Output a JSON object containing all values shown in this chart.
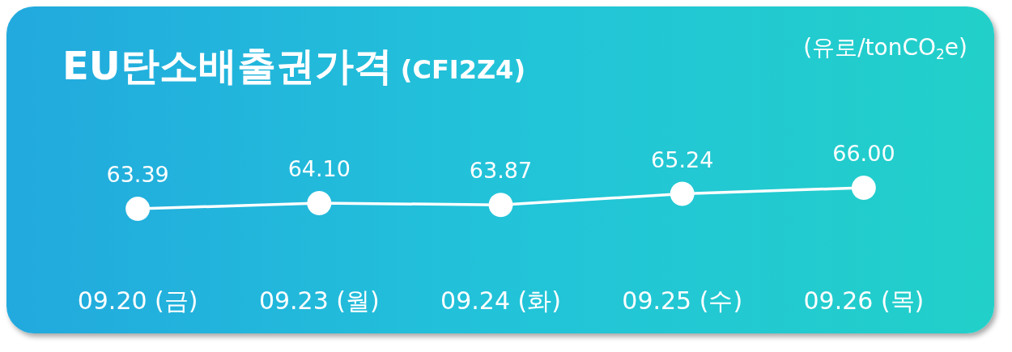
{
  "chart_data": {
    "type": "line",
    "title": "EU탄소배출권가격",
    "subtitle": "(CFI2Z4)",
    "annotations": [
      "(유로/tonCO$_{2}$e)"
    ],
    "categories": [
      "09.20 (금)",
      "09.23 (월)",
      "09.24 (화)",
      "09.25 (수)",
      "09.26 (목)"
    ],
    "series": [
      {
        "color": "#ffffff",
        "values": [
          63.39,
          64.1,
          63.87,
          65.24,
          66.0
        ],
        "value_labels": [
          "63.39",
          "64.10",
          "63.87",
          "65.24",
          "66.00"
        ]
      }
    ],
    "tick_labels": "x",
    "grid": false,
    "marker": "circle",
    "line_style": "solid"
  }
}
